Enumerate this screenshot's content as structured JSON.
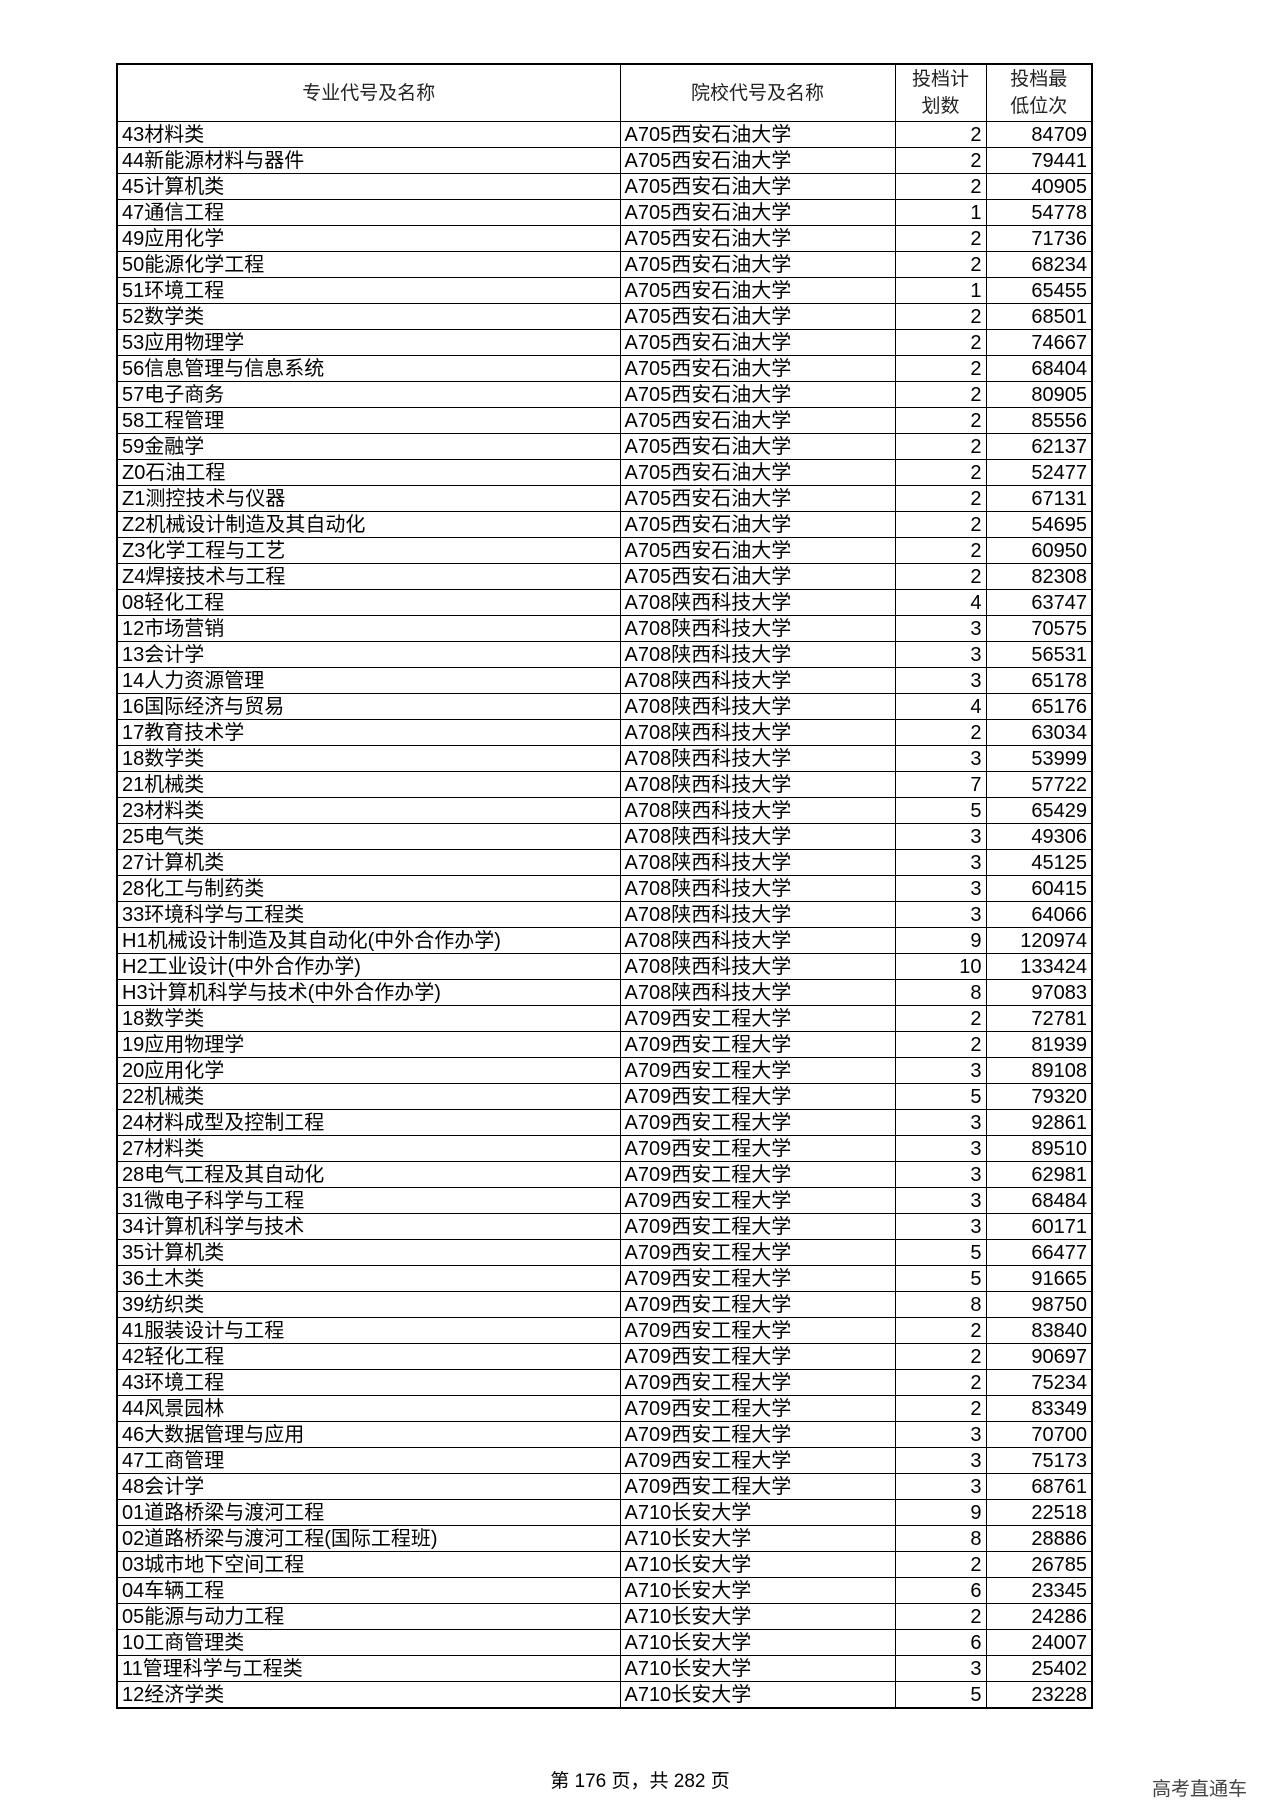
{
  "headers": [
    "专业代号及名称",
    "院校代号及名称",
    "投档计划数",
    "投档最低位次"
  ],
  "rows": [
    [
      "43材料类",
      "A705西安石油大学",
      "2",
      "84709"
    ],
    [
      "44新能源材料与器件",
      "A705西安石油大学",
      "2",
      "79441"
    ],
    [
      "45计算机类",
      "A705西安石油大学",
      "2",
      "40905"
    ],
    [
      "47通信工程",
      "A705西安石油大学",
      "1",
      "54778"
    ],
    [
      "49应用化学",
      "A705西安石油大学",
      "2",
      "71736"
    ],
    [
      "50能源化学工程",
      "A705西安石油大学",
      "2",
      "68234"
    ],
    [
      "51环境工程",
      "A705西安石油大学",
      "1",
      "65455"
    ],
    [
      "52数学类",
      "A705西安石油大学",
      "2",
      "68501"
    ],
    [
      "53应用物理学",
      "A705西安石油大学",
      "2",
      "74667"
    ],
    [
      "56信息管理与信息系统",
      "A705西安石油大学",
      "2",
      "68404"
    ],
    [
      "57电子商务",
      "A705西安石油大学",
      "2",
      "80905"
    ],
    [
      "58工程管理",
      "A705西安石油大学",
      "2",
      "85556"
    ],
    [
      "59金融学",
      "A705西安石油大学",
      "2",
      "62137"
    ],
    [
      "Z0石油工程",
      "A705西安石油大学",
      "2",
      "52477"
    ],
    [
      "Z1测控技术与仪器",
      "A705西安石油大学",
      "2",
      "67131"
    ],
    [
      "Z2机械设计制造及其自动化",
      "A705西安石油大学",
      "2",
      "54695"
    ],
    [
      "Z3化学工程与工艺",
      "A705西安石油大学",
      "2",
      "60950"
    ],
    [
      "Z4焊接技术与工程",
      "A705西安石油大学",
      "2",
      "82308"
    ],
    [
      "08轻化工程",
      "A708陕西科技大学",
      "4",
      "63747"
    ],
    [
      "12市场营销",
      "A708陕西科技大学",
      "3",
      "70575"
    ],
    [
      "13会计学",
      "A708陕西科技大学",
      "3",
      "56531"
    ],
    [
      "14人力资源管理",
      "A708陕西科技大学",
      "3",
      "65178"
    ],
    [
      "16国际经济与贸易",
      "A708陕西科技大学",
      "4",
      "65176"
    ],
    [
      "17教育技术学",
      "A708陕西科技大学",
      "2",
      "63034"
    ],
    [
      "18数学类",
      "A708陕西科技大学",
      "3",
      "53999"
    ],
    [
      "21机械类",
      "A708陕西科技大学",
      "7",
      "57722"
    ],
    [
      "23材料类",
      "A708陕西科技大学",
      "5",
      "65429"
    ],
    [
      "25电气类",
      "A708陕西科技大学",
      "3",
      "49306"
    ],
    [
      "27计算机类",
      "A708陕西科技大学",
      "3",
      "45125"
    ],
    [
      "28化工与制药类",
      "A708陕西科技大学",
      "3",
      "60415"
    ],
    [
      "33环境科学与工程类",
      "A708陕西科技大学",
      "3",
      "64066"
    ],
    [
      "H1机械设计制造及其自动化(中外合作办学)",
      "A708陕西科技大学",
      "9",
      "120974"
    ],
    [
      "H2工业设计(中外合作办学)",
      "A708陕西科技大学",
      "10",
      "133424"
    ],
    [
      "H3计算机科学与技术(中外合作办学)",
      "A708陕西科技大学",
      "8",
      "97083"
    ],
    [
      "18数学类",
      "A709西安工程大学",
      "2",
      "72781"
    ],
    [
      "19应用物理学",
      "A709西安工程大学",
      "2",
      "81939"
    ],
    [
      "20应用化学",
      "A709西安工程大学",
      "3",
      "89108"
    ],
    [
      "22机械类",
      "A709西安工程大学",
      "5",
      "79320"
    ],
    [
      "24材料成型及控制工程",
      "A709西安工程大学",
      "3",
      "92861"
    ],
    [
      "27材料类",
      "A709西安工程大学",
      "3",
      "89510"
    ],
    [
      "28电气工程及其自动化",
      "A709西安工程大学",
      "3",
      "62981"
    ],
    [
      "31微电子科学与工程",
      "A709西安工程大学",
      "3",
      "68484"
    ],
    [
      "34计算机科学与技术",
      "A709西安工程大学",
      "3",
      "60171"
    ],
    [
      "35计算机类",
      "A709西安工程大学",
      "5",
      "66477"
    ],
    [
      "36土木类",
      "A709西安工程大学",
      "5",
      "91665"
    ],
    [
      "39纺织类",
      "A709西安工程大学",
      "8",
      "98750"
    ],
    [
      "41服装设计与工程",
      "A709西安工程大学",
      "2",
      "83840"
    ],
    [
      "42轻化工程",
      "A709西安工程大学",
      "2",
      "90697"
    ],
    [
      "43环境工程",
      "A709西安工程大学",
      "2",
      "75234"
    ],
    [
      "44风景园林",
      "A709西安工程大学",
      "2",
      "83349"
    ],
    [
      "46大数据管理与应用",
      "A709西安工程大学",
      "3",
      "70700"
    ],
    [
      "47工商管理",
      "A709西安工程大学",
      "3",
      "75173"
    ],
    [
      "48会计学",
      "A709西安工程大学",
      "3",
      "68761"
    ],
    [
      "01道路桥梁与渡河工程",
      "A710长安大学",
      "9",
      "22518"
    ],
    [
      "02道路桥梁与渡河工程(国际工程班)",
      "A710长安大学",
      "8",
      "28886"
    ],
    [
      "03城市地下空间工程",
      "A710长安大学",
      "2",
      "26785"
    ],
    [
      "04车辆工程",
      "A710长安大学",
      "6",
      "23345"
    ],
    [
      "05能源与动力工程",
      "A710长安大学",
      "2",
      "24286"
    ],
    [
      "10工商管理类",
      "A710长安大学",
      "6",
      "24007"
    ],
    [
      "11管理科学与工程类",
      "A710长安大学",
      "3",
      "25402"
    ],
    [
      "12经济学类",
      "A710长安大学",
      "5",
      "23228"
    ]
  ],
  "footer": "第 176 页，共 282 页",
  "watermark": "高考直通车"
}
